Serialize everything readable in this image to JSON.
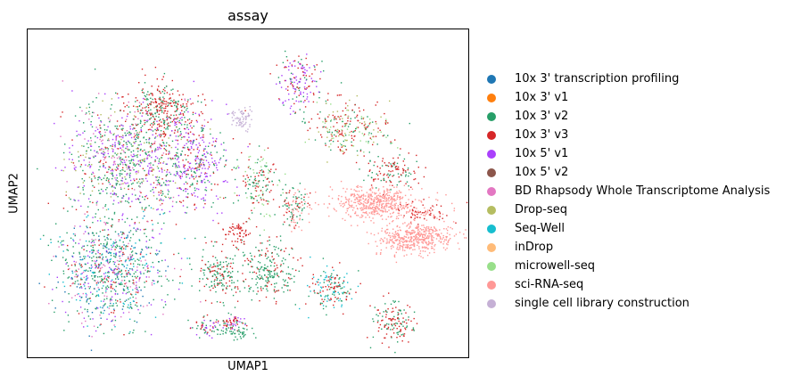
{
  "chart_data": {
    "type": "scatter",
    "title": "assay",
    "xlabel": "UMAP1",
    "ylabel": "UMAP2",
    "grid": false,
    "legend_position": "right",
    "xticks": [],
    "yticks": [],
    "series": [
      {
        "name": "10x 3' transcription profiling",
        "color": "#1f77b4"
      },
      {
        "name": "10x 3' v1",
        "color": "#ff7f0e"
      },
      {
        "name": "10x 3' v2",
        "color": "#279e68"
      },
      {
        "name": "10x 3' v3",
        "color": "#d62728"
      },
      {
        "name": "10x 5' v1",
        "color": "#aa40fc"
      },
      {
        "name": "10x 5' v2",
        "color": "#8c564b"
      },
      {
        "name": "BD Rhapsody Whole Transcriptome Analysis",
        "color": "#e377c2"
      },
      {
        "name": "Drop-seq",
        "color": "#b5bd61"
      },
      {
        "name": "Seq-Well",
        "color": "#17becf"
      },
      {
        "name": "inDrop",
        "color": "#ffbb78"
      },
      {
        "name": "microwell-seq",
        "color": "#98df8a"
      },
      {
        "name": "sci-RNA-seq",
        "color": "#ff9896"
      },
      {
        "name": "single cell library construction",
        "color": "#c5b0d5"
      }
    ]
  }
}
